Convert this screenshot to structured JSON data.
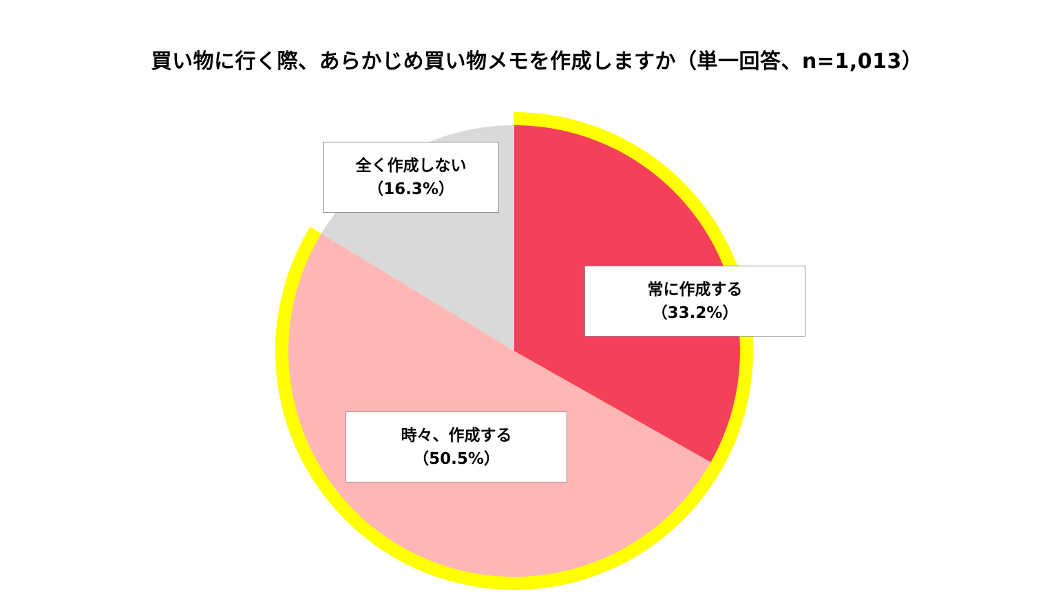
{
  "chart_data": {
    "type": "pie",
    "title": "買い物に行く際、あらかじめ買い物メモを作成しますか（単一回答、n=1,013）",
    "slices": [
      {
        "name": "常に作成する",
        "value": 33.2,
        "value_label": "（33.2%）",
        "color": "#f5405c",
        "highlighted": true
      },
      {
        "name": "時々、作成する",
        "value": 50.5,
        "value_label": "（50.5%）",
        "color": "#ffb6b6",
        "highlighted": true
      },
      {
        "name": "全く作成しない",
        "value": 16.3,
        "value_label": "（16.3%）",
        "color": "#d9d9d9",
        "highlighted": false
      }
    ],
    "highlight_color": "#ffff00",
    "legend": "none",
    "start": "12 o'clock, clockwise"
  }
}
